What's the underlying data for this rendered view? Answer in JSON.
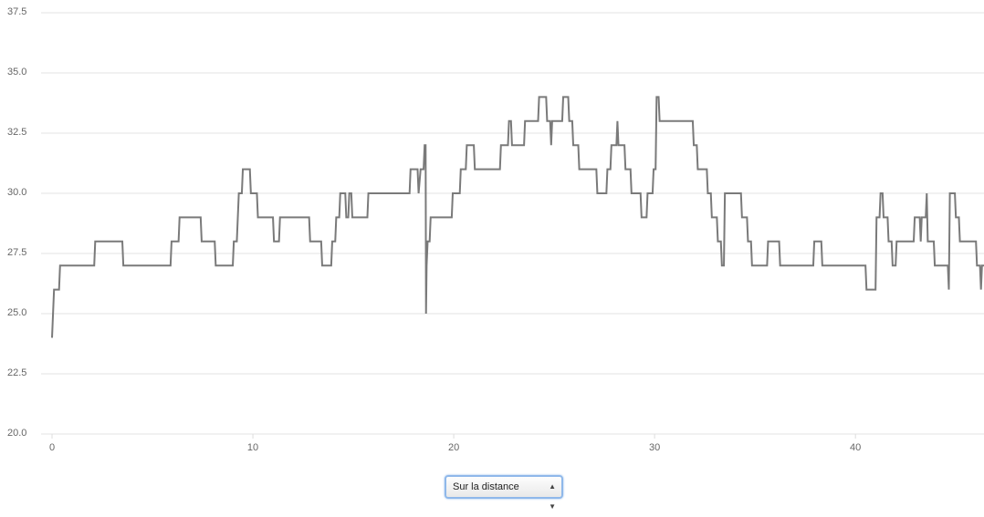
{
  "chart_data": {
    "type": "line",
    "color": "#7a7a7a",
    "grid": true,
    "ylim": [
      20,
      37.5
    ],
    "yticks": [
      {
        "value": 20,
        "label": "20.0"
      },
      {
        "value": 22.5,
        "label": "22.5"
      },
      {
        "value": 25,
        "label": "25.0"
      },
      {
        "value": 27.5,
        "label": "27.5"
      },
      {
        "value": 30,
        "label": "30.0"
      },
      {
        "value": 32.5,
        "label": "32.5"
      },
      {
        "value": 35,
        "label": "35.0"
      },
      {
        "value": 37.5,
        "label": "37.5"
      }
    ],
    "xlim": [
      0,
      46.4
    ],
    "xticks": [
      0,
      10,
      20,
      30,
      40
    ],
    "x": [
      0.0,
      0.05,
      0.1,
      0.35,
      0.4,
      2.1,
      2.15,
      3.5,
      3.55,
      5.9,
      5.95,
      6.3,
      6.35,
      7.4,
      7.45,
      8.1,
      8.15,
      9.0,
      9.05,
      9.2,
      9.25,
      9.3,
      9.45,
      9.5,
      9.85,
      9.9,
      10.2,
      10.25,
      11.0,
      11.05,
      11.3,
      11.35,
      12.8,
      12.85,
      13.4,
      13.45,
      13.9,
      13.95,
      14.1,
      14.15,
      14.3,
      14.35,
      14.6,
      14.65,
      14.75,
      14.8,
      14.9,
      14.95,
      15.7,
      15.75,
      17.8,
      17.85,
      18.2,
      18.25,
      18.35,
      18.5,
      18.55,
      18.6,
      18.62,
      18.65,
      18.7,
      18.8,
      18.85,
      19.9,
      19.95,
      20.3,
      20.35,
      20.6,
      20.65,
      21.0,
      21.05,
      22.3,
      22.35,
      22.7,
      22.75,
      22.85,
      22.9,
      23.5,
      23.55,
      24.2,
      24.25,
      24.6,
      24.65,
      24.8,
      24.85,
      24.9,
      25.4,
      25.45,
      25.7,
      25.75,
      25.9,
      25.95,
      26.2,
      26.25,
      27.1,
      27.15,
      27.6,
      27.65,
      27.8,
      27.85,
      28.1,
      28.15,
      28.2,
      28.5,
      28.55,
      28.8,
      28.85,
      29.3,
      29.35,
      29.6,
      29.65,
      29.9,
      29.95,
      30.05,
      30.1,
      30.2,
      30.25,
      31.9,
      31.95,
      32.1,
      32.15,
      32.6,
      32.65,
      32.8,
      32.85,
      33.1,
      33.15,
      33.3,
      33.35,
      33.45,
      33.5,
      34.3,
      34.35,
      34.6,
      34.65,
      34.8,
      34.85,
      35.6,
      35.65,
      36.2,
      36.25,
      37.9,
      37.95,
      38.3,
      38.35,
      40.5,
      40.55,
      41.0,
      41.05,
      41.2,
      41.25,
      41.35,
      41.4,
      41.6,
      41.65,
      41.8,
      41.85,
      42.0,
      42.05,
      42.9,
      42.95,
      43.2,
      43.25,
      43.3,
      43.5,
      43.55,
      43.6,
      43.9,
      43.95,
      44.6,
      44.65,
      44.7,
      44.95,
      45.0,
      45.15,
      45.2,
      46.0,
      46.05,
      46.2,
      46.25,
      46.3,
      46.4
    ],
    "values": [
      24,
      25,
      26,
      26,
      27,
      27,
      28,
      28,
      27,
      27,
      28,
      28,
      29,
      29,
      28,
      28,
      27,
      27,
      28,
      28,
      29,
      30,
      30,
      31,
      31,
      30,
      30,
      29,
      29,
      28,
      28,
      29,
      29,
      28,
      28,
      27,
      27,
      28,
      28,
      29,
      29,
      30,
      30,
      29,
      29,
      30,
      30,
      29,
      29,
      30,
      30,
      31,
      31,
      30,
      31,
      31,
      32,
      32,
      25,
      27,
      28,
      28,
      29,
      29,
      30,
      30,
      31,
      31,
      32,
      32,
      31,
      31,
      32,
      32,
      33,
      33,
      32,
      32,
      33,
      33,
      34,
      34,
      33,
      33,
      32,
      33,
      33,
      34,
      34,
      33,
      33,
      32,
      32,
      31,
      31,
      30,
      30,
      31,
      31,
      32,
      32,
      33,
      32,
      32,
      31,
      31,
      30,
      30,
      29,
      29,
      30,
      30,
      31,
      31,
      34,
      34,
      33,
      33,
      32,
      32,
      31,
      31,
      30,
      30,
      29,
      29,
      28,
      28,
      27,
      27,
      30,
      30,
      29,
      29,
      28,
      28,
      27,
      27,
      28,
      28,
      27,
      27,
      28,
      28,
      27,
      27,
      26,
      26,
      29,
      29,
      30,
      30,
      29,
      29,
      28,
      28,
      27,
      27,
      28,
      28,
      29,
      29,
      28,
      29,
      29,
      30,
      28,
      28,
      27,
      27,
      26,
      30,
      30,
      29,
      29,
      28,
      28,
      27,
      27,
      26,
      27,
      27
    ]
  },
  "control": {
    "selected": "Sur la distance"
  }
}
